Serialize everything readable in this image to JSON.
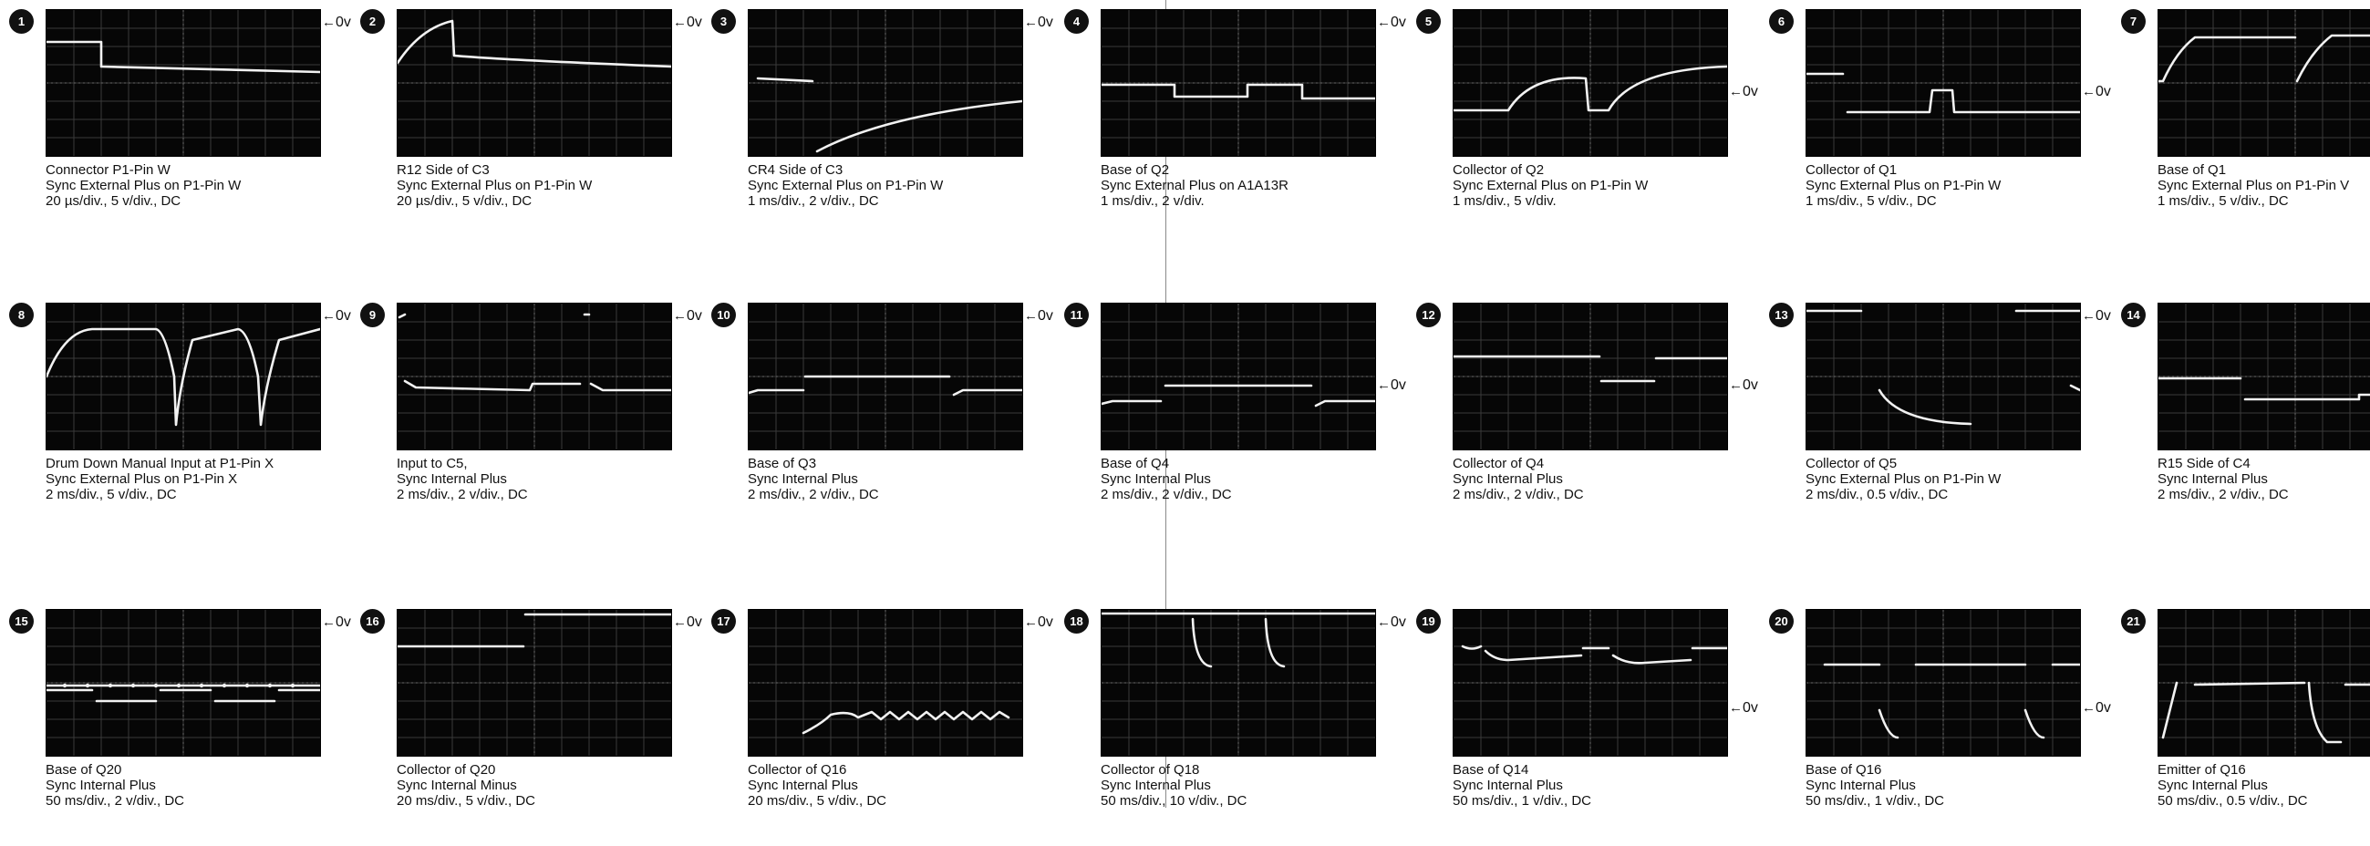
{
  "zero_ref_label": "0v",
  "waveforms": [
    {
      "number": "1",
      "lines": [
        "Connector P1-Pin W",
        "Sync External Plus on P1-Pin W",
        "20 µs/div., 5 v/div., DC"
      ],
      "ref_row": "top"
    },
    {
      "number": "2",
      "lines": [
        "R12 Side of C3",
        "Sync External Plus on P1-Pin W",
        "20 µs/div., 5 v/div., DC"
      ],
      "ref_row": "top"
    },
    {
      "number": "3",
      "lines": [
        "CR4 Side of C3",
        "Sync External Plus on P1-Pin W",
        "1 ms/div., 2 v/div., DC"
      ],
      "ref_row": "top"
    },
    {
      "number": "4",
      "lines": [
        "Base of Q2",
        "Sync External Plus on A1A13R",
        "1 ms/div., 2 v/div."
      ],
      "ref_row": "top"
    },
    {
      "number": "5",
      "lines": [
        "Collector of Q2",
        "Sync External Plus on P1-Pin W",
        "1 ms/div., 5 v/div."
      ],
      "ref_row": "middle"
    },
    {
      "number": "6",
      "lines": [
        "Collector of Q1",
        "Sync External Plus on P1-Pin W",
        "1 ms/div., 5 v/div., DC"
      ],
      "ref_row": "middle"
    },
    {
      "number": "7",
      "lines": [
        "Base of Q1",
        "Sync External Plus on P1-Pin V",
        "1 ms/div., 5 v/div., DC"
      ],
      "ref_row": "none"
    },
    {
      "number": "8",
      "lines": [
        "Drum Down Manual Input at P1-Pin X",
        "Sync External Plus on P1-Pin X",
        "2 ms/div., 5 v/div., DC"
      ],
      "ref_row": "top"
    },
    {
      "number": "9",
      "lines": [
        "Input to C5,",
        "Sync Internal Plus",
        "2 ms/div., 2 v/div., DC"
      ],
      "ref_row": "top"
    },
    {
      "number": "10",
      "lines": [
        "Base of Q3",
        "Sync Internal Plus",
        "2 ms/div., 2 v/div., DC"
      ],
      "ref_row": "top"
    },
    {
      "number": "11",
      "lines": [
        "Base of Q4",
        "Sync Internal Plus",
        "2 ms/div., 2 v/div., DC"
      ],
      "ref_row": "middle"
    },
    {
      "number": "12",
      "lines": [
        "Collector of Q4",
        "Sync Internal Plus",
        "2 ms/div., 2 v/div., DC"
      ],
      "ref_row": "middle"
    },
    {
      "number": "13",
      "lines": [
        "Collector of Q5",
        "Sync External Plus on P1-Pin W",
        "2 ms/div., 0.5 v/div., DC"
      ],
      "ref_row": "top"
    },
    {
      "number": "14",
      "lines": [
        "R15 Side of C4",
        "Sync Internal Plus",
        "2 ms/div., 2 v/div., DC"
      ],
      "ref_row": "none"
    },
    {
      "number": "15",
      "lines": [
        "Base of Q20",
        "Sync Internal Plus",
        "50 ms/div., 2 v/div., DC"
      ],
      "ref_row": "top"
    },
    {
      "number": "16",
      "lines": [
        "Collector of Q20",
        "Sync Internal Minus",
        "20 ms/div., 5 v/div., DC"
      ],
      "ref_row": "top"
    },
    {
      "number": "17",
      "lines": [
        "Collector of Q16",
        "Sync Internal Plus",
        "20 ms/div., 5 v/div., DC"
      ],
      "ref_row": "top"
    },
    {
      "number": "18",
      "lines": [
        "Collector of Q18",
        "Sync Internal Plus",
        "50 ms/div., 10 v/div., DC"
      ],
      "ref_row": "top"
    },
    {
      "number": "19",
      "lines": [
        "Base of Q14",
        "Sync Internal Plus",
        "50 ms/div., 1 v/div., DC"
      ],
      "ref_row": "lower"
    },
    {
      "number": "20",
      "lines": [
        "Base of Q16",
        "Sync Internal Plus",
        "50 ms/div., 1 v/div., DC"
      ],
      "ref_row": "lower"
    },
    {
      "number": "21",
      "lines": [
        "Emitter of Q16",
        "Sync Internal Plus",
        "50 ms/div., 0.5 v/div., DC"
      ],
      "ref_row": "none"
    }
  ]
}
